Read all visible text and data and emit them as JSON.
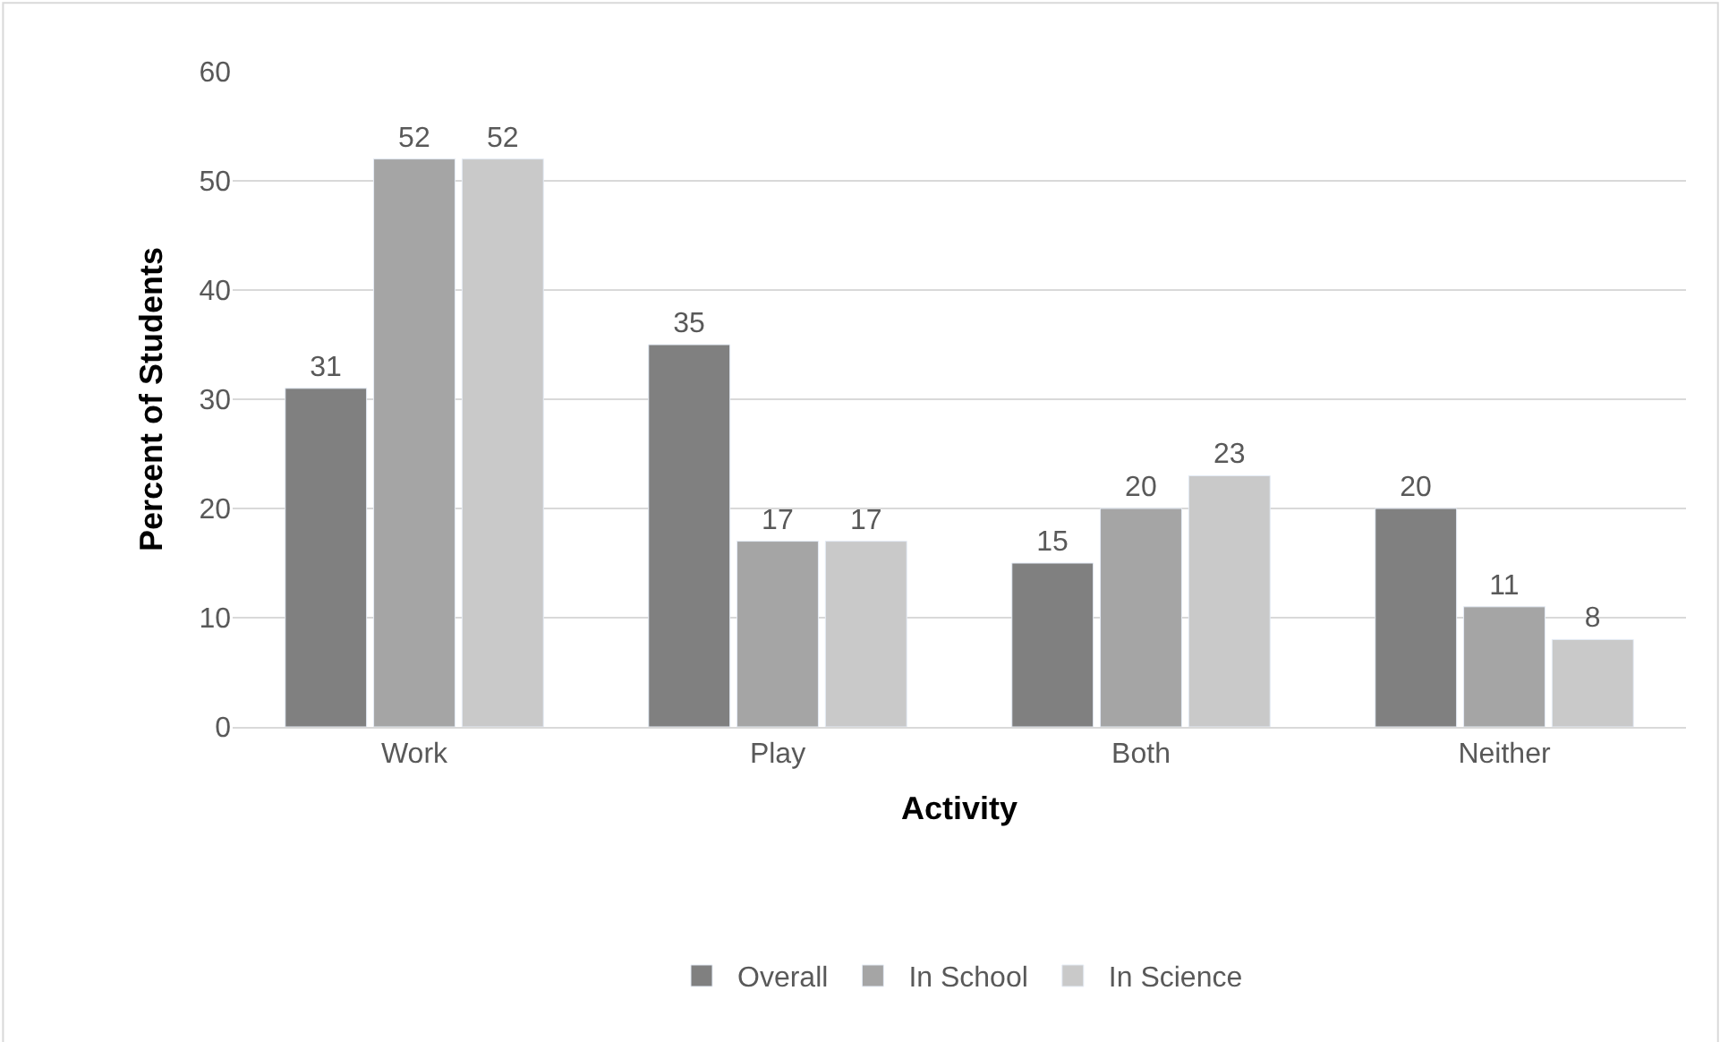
{
  "chart_data": {
    "type": "bar",
    "xlabel": "Activity",
    "ylabel": "Percent of Students",
    "categories": [
      "Work",
      "Play",
      "Both",
      "Neither"
    ],
    "series": [
      {
        "name": "Overall",
        "color": "#808080",
        "values": [
          31,
          35,
          15,
          20
        ]
      },
      {
        "name": "In School",
        "color": "#a5a5a5",
        "values": [
          52,
          17,
          20,
          11
        ]
      },
      {
        "name": "In Science",
        "color": "#c9c9c9",
        "values": [
          52,
          17,
          23,
          8
        ]
      }
    ],
    "ylim": [
      0,
      60
    ],
    "yticks": [
      0,
      10,
      20,
      30,
      40,
      50,
      60
    ],
    "grid": "y",
    "legend": "bottom",
    "data_labels": true
  }
}
